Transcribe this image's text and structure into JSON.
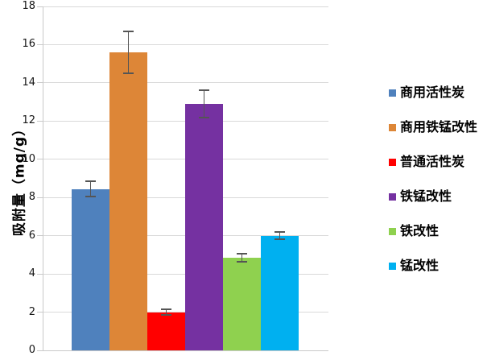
{
  "chart_data": {
    "type": "bar",
    "title": "",
    "xlabel": "",
    "ylabel": "吸附量（mg/g）",
    "ylim": [
      0,
      18
    ],
    "yticks": [
      0,
      2,
      4,
      6,
      8,
      10,
      12,
      14,
      16,
      18
    ],
    "grid": true,
    "legend_position": "right",
    "categories": [
      ""
    ],
    "series": [
      {
        "name": "商用活性炭",
        "color": "#4F81BD",
        "values": [
          8.45
        ],
        "error": [
          0.4
        ]
      },
      {
        "name": "商用铁锰改性",
        "color": "#DD8637",
        "values": [
          15.6
        ],
        "error": [
          1.1
        ]
      },
      {
        "name": "普通活性炭",
        "color": "#FF0000",
        "values": [
          2.0
        ],
        "error": [
          0.15
        ]
      },
      {
        "name": "铁锰改性",
        "color": "#7531A1",
        "values": [
          12.9
        ],
        "error": [
          0.7
        ]
      },
      {
        "name": "铁改性",
        "color": "#8FD14F",
        "values": [
          4.85
        ],
        "error": [
          0.2
        ]
      },
      {
        "name": "锰改性",
        "color": "#00B0F0",
        "values": [
          6.0
        ],
        "error": [
          0.2
        ]
      }
    ],
    "error_bar_color": "#555555",
    "gridline_color": "#D9D9D9",
    "axis_line_color": "#C9C9C9",
    "background_color": "#FFFFFF"
  }
}
